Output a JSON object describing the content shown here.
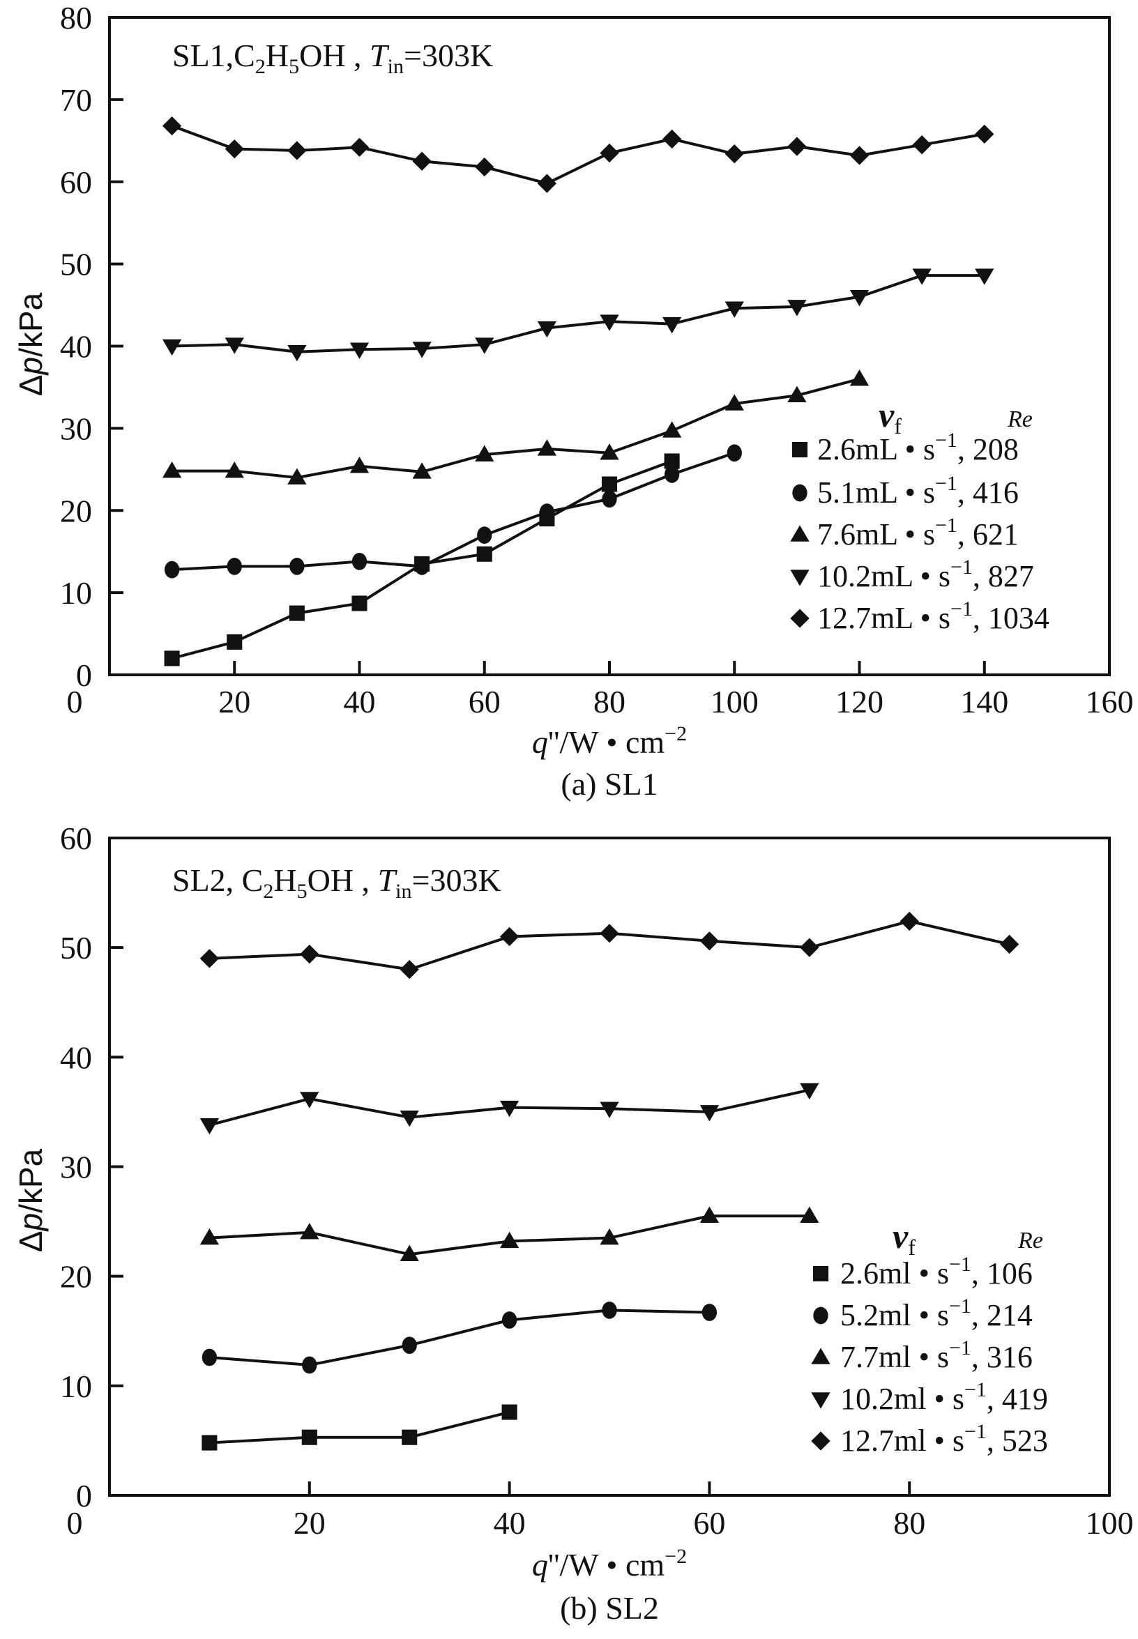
{
  "chart_data": [
    {
      "type": "line",
      "annotation": {
        "a": "SL1,C",
        "s1": "2",
        "b": "H",
        "s2": "5",
        "c": "OH , ",
        "t": "T",
        "tsub": "in",
        "d": "=303K"
      },
      "caption": "(a) SL1",
      "ylabel": {
        "sym": "Δ",
        "var": "p",
        "unit": "/kPa"
      },
      "xlabel": {
        "var": "q",
        "rest": "''/W • cm",
        "exp": "−2"
      },
      "xlim": [
        0,
        160
      ],
      "ylim": [
        0,
        80
      ],
      "xticks": [
        0,
        20,
        40,
        60,
        80,
        100,
        120,
        140,
        160
      ],
      "yticks": [
        0,
        10,
        20,
        30,
        40,
        50,
        60,
        70,
        80
      ],
      "xtick_labels": [
        "0",
        "20",
        "40",
        "60",
        "80",
        "100",
        "120",
        "140",
        "160"
      ],
      "ytick_labels": [
        "0",
        "10",
        "20",
        "30",
        "40",
        "50",
        "60",
        "70",
        "80"
      ],
      "legend": {
        "header_vf": "v",
        "header_vf_sub": "f",
        "header_re": "Re",
        "placement": "right"
      },
      "series": [
        {
          "marker": "square",
          "rate": "2.6mL",
          "unit": "s",
          "exp": "−1",
          "re": "208",
          "x": [
            10,
            20,
            30,
            40,
            50,
            60,
            70,
            80,
            90
          ],
          "y": [
            2,
            4,
            7.5,
            8.7,
            13.5,
            14.7,
            19,
            23.2,
            26
          ]
        },
        {
          "marker": "circle",
          "rate": "5.1mL",
          "unit": "s",
          "exp": "−1",
          "re": "416",
          "x": [
            10,
            20,
            30,
            40,
            50,
            60,
            70,
            80,
            90,
            100
          ],
          "y": [
            12.8,
            13.2,
            13.2,
            13.8,
            13.2,
            17,
            19.8,
            21.4,
            24.4,
            27
          ]
        },
        {
          "marker": "triangle-up",
          "rate": "7.6mL",
          "unit": "s",
          "exp": "−1",
          "re": "621",
          "x": [
            10,
            20,
            30,
            40,
            50,
            60,
            70,
            80,
            90,
            100,
            110,
            120
          ],
          "y": [
            24.8,
            24.8,
            24,
            25.4,
            24.7,
            26.8,
            27.5,
            27,
            29.7,
            33,
            34,
            36
          ]
        },
        {
          "marker": "triangle-down",
          "rate": "10.2mL",
          "unit": "s",
          "exp": "−1",
          "re": "827",
          "x": [
            10,
            20,
            30,
            40,
            50,
            60,
            70,
            80,
            90,
            100,
            110,
            120,
            130,
            140
          ],
          "y": [
            40,
            40.2,
            39.3,
            39.6,
            39.7,
            40.2,
            42.2,
            43,
            42.7,
            44.6,
            44.8,
            46,
            48.6,
            48.6
          ]
        },
        {
          "marker": "diamond",
          "rate": "12.7mL",
          "unit": "s",
          "exp": "−1",
          "re": "1034",
          "x": [
            10,
            20,
            30,
            40,
            50,
            60,
            70,
            80,
            90,
            100,
            110,
            120,
            130,
            140
          ],
          "y": [
            66.8,
            64,
            63.8,
            64.2,
            62.5,
            61.8,
            59.8,
            63.5,
            65.2,
            63.4,
            64.3,
            63.2,
            64.5,
            65.8
          ]
        }
      ]
    },
    {
      "type": "line",
      "annotation": {
        "a": "SL2, C",
        "s1": "2",
        "b": "H",
        "s2": "5",
        "c": "OH , ",
        "t": "T",
        "tsub": "in",
        "d": "=303K"
      },
      "caption": "(b) SL2",
      "ylabel": {
        "sym": "Δ",
        "var": "p",
        "unit": "/kPa"
      },
      "xlabel": {
        "var": "q",
        "rest": "''/W • cm",
        "exp": "−2"
      },
      "xlim": [
        0,
        100
      ],
      "ylim": [
        0,
        60
      ],
      "xticks": [
        0,
        20,
        40,
        60,
        80,
        100
      ],
      "yticks": [
        0,
        10,
        20,
        30,
        40,
        50,
        60
      ],
      "xtick_labels": [
        "0",
        "20",
        "40",
        "60",
        "80",
        "100"
      ],
      "ytick_labels": [
        "0",
        "10",
        "20",
        "30",
        "40",
        "50",
        "60"
      ],
      "legend": {
        "header_vf": "v",
        "header_vf_sub": "f",
        "header_re": "Re",
        "placement": "bottom-right"
      },
      "series": [
        {
          "marker": "square",
          "rate": "2.6ml",
          "unit": "s",
          "exp": "−1",
          "re": "106",
          "x": [
            10,
            20,
            30,
            40
          ],
          "y": [
            4.8,
            5.3,
            5.3,
            7.6
          ]
        },
        {
          "marker": "circle",
          "rate": "5.2ml",
          "unit": "s",
          "exp": "−1",
          "re": "214",
          "x": [
            10,
            20,
            30,
            40,
            50,
            60
          ],
          "y": [
            12.6,
            11.9,
            13.7,
            16,
            16.9,
            16.7
          ]
        },
        {
          "marker": "triangle-up",
          "rate": "7.7ml",
          "unit": "s",
          "exp": "−1",
          "re": "316",
          "x": [
            10,
            20,
            30,
            40,
            50,
            60,
            70
          ],
          "y": [
            23.5,
            24,
            22,
            23.2,
            23.5,
            25.5,
            25.5
          ]
        },
        {
          "marker": "triangle-down",
          "rate": "10.2ml",
          "unit": "s",
          "exp": "−1",
          "re": "419",
          "x": [
            10,
            20,
            30,
            40,
            50,
            60,
            70
          ],
          "y": [
            33.8,
            36.2,
            34.5,
            35.4,
            35.3,
            35,
            37
          ]
        },
        {
          "marker": "diamond",
          "rate": "12.7ml",
          "unit": "s",
          "exp": "−1",
          "re": "523",
          "x": [
            10,
            20,
            30,
            40,
            50,
            60,
            70,
            80,
            90
          ],
          "y": [
            49,
            49.4,
            48,
            51,
            51.3,
            50.6,
            50,
            52.4,
            50.3
          ]
        }
      ]
    }
  ]
}
